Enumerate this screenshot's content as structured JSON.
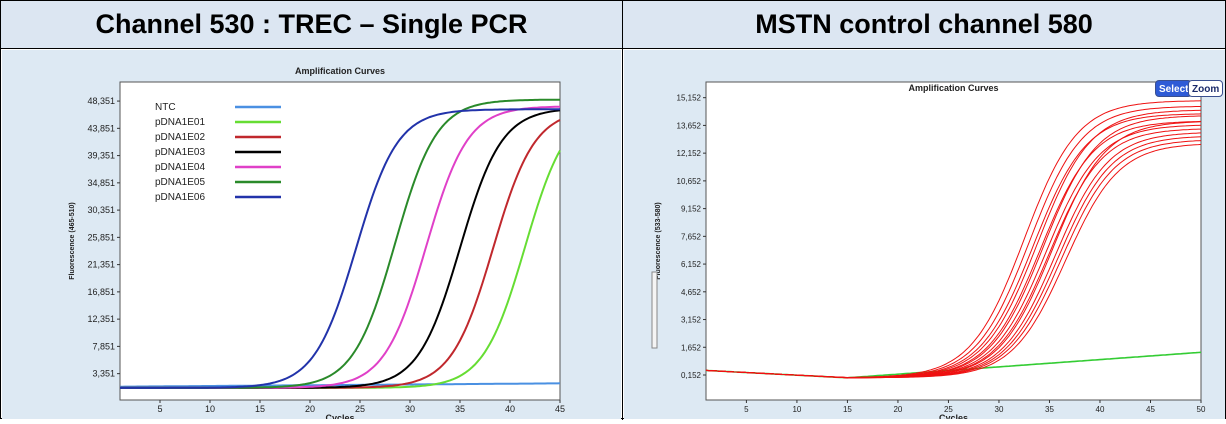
{
  "headers": {
    "left": "Channel 530 : TREC – Single PCR",
    "right": "MSTN control channel 580"
  },
  "toolbar": {
    "select_label": "Select",
    "zoom_label": "Zoom"
  },
  "chart_data": [
    {
      "type": "line",
      "title": "Amplification Curves",
      "xlabel": "Cycles",
      "ylabel": "Fluorescence (465-510)",
      "xlim": [
        1,
        45
      ],
      "ylim": [
        -1000,
        51500
      ],
      "xticks": [
        5,
        10,
        15,
        20,
        25,
        30,
        35,
        40,
        45
      ],
      "yticks": [
        3351,
        7851,
        12351,
        16851,
        21351,
        25851,
        30351,
        34851,
        39351,
        43851,
        48351
      ],
      "ytick_labels": [
        "3,351",
        "7,851",
        "12,351",
        "16,851",
        "21,351",
        "25,851",
        "30,351",
        "34,851",
        "39,351",
        "43,851",
        "48,351"
      ],
      "legend_position": "top-left",
      "series": [
        {
          "name": "NTC",
          "color": "#4a90e2",
          "kind": "flat",
          "base": 1200,
          "end": 1750
        },
        {
          "name": "pDNA1E01",
          "color": "#66dd33",
          "kind": "sigmoid",
          "base": 1000,
          "plateau": 47500,
          "mid": 41.5,
          "k": 0.48
        },
        {
          "name": "pDNA1E02",
          "color": "#c0282d",
          "kind": "sigmoid",
          "base": 1000,
          "plateau": 47000,
          "mid": 38.3,
          "k": 0.48
        },
        {
          "name": "pDNA1E03",
          "color": "#000000",
          "kind": "sigmoid",
          "base": 1000,
          "plateau": 47200,
          "mid": 35.0,
          "k": 0.48
        },
        {
          "name": "pDNA1E04",
          "color": "#e040c8",
          "kind": "sigmoid",
          "base": 1000,
          "plateau": 47500,
          "mid": 31.6,
          "k": 0.48
        },
        {
          "name": "pDNA1E05",
          "color": "#2a8a2a",
          "kind": "sigmoid",
          "base": 1000,
          "plateau": 48600,
          "mid": 28.5,
          "k": 0.48
        },
        {
          "name": "pDNA1E06",
          "color": "#2233aa",
          "kind": "sigmoid",
          "base": 1000,
          "plateau": 47000,
          "mid": 24.6,
          "k": 0.48
        }
      ]
    },
    {
      "type": "line",
      "title": "Amplification Curves",
      "xlabel": "Cycles",
      "ylabel": "Fluorescence (533-580)",
      "xlim": [
        1,
        50
      ],
      "ylim": [
        -1200,
        16000
      ],
      "xticks": [
        5,
        10,
        15,
        20,
        25,
        30,
        35,
        40,
        45,
        50
      ],
      "yticks": [
        152,
        1652,
        3152,
        4652,
        6152,
        7652,
        9152,
        10652,
        12152,
        13652,
        15152
      ],
      "ytick_labels": [
        "0,152",
        "1,652",
        "3,152",
        "4,652",
        "6,152",
        "7,652",
        "9,152",
        "10,652",
        "12,152",
        "13,652",
        "15,152"
      ],
      "legend_position": "none",
      "control": {
        "color": "#33cc33",
        "start": 400,
        "dip": 0,
        "end": 600
      },
      "replicates": {
        "color": "#ee1111",
        "mids": [
          32.5,
          33.0,
          33.4,
          33.8,
          34.1,
          34.4,
          34.7,
          35.0,
          35.3,
          35.6,
          35.9,
          36.2,
          36.6
        ],
        "plateaus": [
          15000,
          14700,
          14300,
          14500,
          13900,
          14200,
          13700,
          13500,
          13900,
          13300,
          13100,
          12900,
          12700
        ]
      }
    }
  ]
}
